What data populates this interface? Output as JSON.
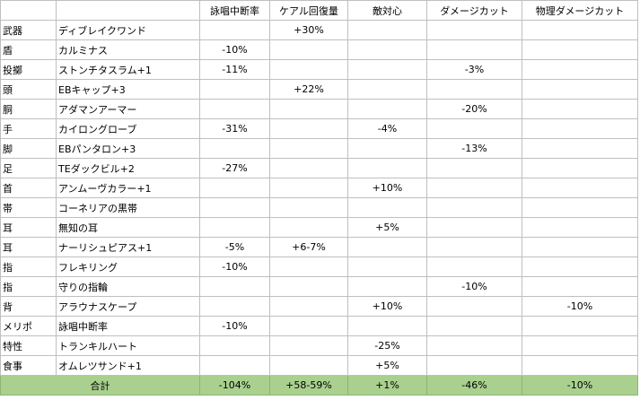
{
  "columns": [
    "",
    "",
    "詠唱中断率",
    "ケアル回復量",
    "敵対心",
    "ダメージカット",
    "物理ダメージカット"
  ],
  "rows": [
    {
      "slot": "武器",
      "item": "ディブレイクワンド",
      "spell_interrupt": "",
      "cure_potency": "+30%",
      "enmity": "",
      "dt": "",
      "pdt": ""
    },
    {
      "slot": "盾",
      "item": "カルミナス",
      "spell_interrupt": "-10%",
      "cure_potency": "",
      "enmity": "",
      "dt": "",
      "pdt": ""
    },
    {
      "slot": "投擲",
      "item": "ストンチタスラム+1",
      "spell_interrupt": "-11%",
      "cure_potency": "",
      "enmity": "",
      "dt": "-3%",
      "pdt": ""
    },
    {
      "slot": "頭",
      "item": "EBキャップ+3",
      "spell_interrupt": "",
      "cure_potency": "+22%",
      "enmity": "",
      "dt": "",
      "pdt": ""
    },
    {
      "slot": "胴",
      "item": "アダマンアーマー",
      "spell_interrupt": "",
      "cure_potency": "",
      "enmity": "",
      "dt": "-20%",
      "pdt": ""
    },
    {
      "slot": "手",
      "item": "カイロングローブ",
      "spell_interrupt": "-31%",
      "cure_potency": "",
      "enmity": "-4%",
      "dt": "",
      "pdt": ""
    },
    {
      "slot": "脚",
      "item": "EBパンタロン+3",
      "spell_interrupt": "",
      "cure_potency": "",
      "enmity": "",
      "dt": "-13%",
      "pdt": ""
    },
    {
      "slot": "足",
      "item": "TEダックビル+2",
      "spell_interrupt": "-27%",
      "cure_potency": "",
      "enmity": "",
      "dt": "",
      "pdt": ""
    },
    {
      "slot": "首",
      "item": "アンムーヴカラー+1",
      "spell_interrupt": "",
      "cure_potency": "",
      "enmity": "+10%",
      "dt": "",
      "pdt": ""
    },
    {
      "slot": "帯",
      "item": "コーネリアの黒帯",
      "spell_interrupt": "",
      "cure_potency": "",
      "enmity": "",
      "dt": "",
      "pdt": ""
    },
    {
      "slot": "耳",
      "item": "無知の耳",
      "spell_interrupt": "",
      "cure_potency": "",
      "enmity": "+5%",
      "dt": "",
      "pdt": ""
    },
    {
      "slot": "耳",
      "item": "ナーリシュピアス+1",
      "spell_interrupt": "-5%",
      "cure_potency": "+6-7%",
      "enmity": "",
      "dt": "",
      "pdt": ""
    },
    {
      "slot": "指",
      "item": "フレキリング",
      "spell_interrupt": "-10%",
      "cure_potency": "",
      "enmity": "",
      "dt": "",
      "pdt": ""
    },
    {
      "slot": "指",
      "item": "守りの指輪",
      "spell_interrupt": "",
      "cure_potency": "",
      "enmity": "",
      "dt": "-10%",
      "pdt": ""
    },
    {
      "slot": "背",
      "item": "アラウナスケープ",
      "spell_interrupt": "",
      "cure_potency": "",
      "enmity": "+10%",
      "dt": "",
      "pdt": "-10%"
    },
    {
      "slot": "メリポ",
      "item": "詠唱中断率",
      "spell_interrupt": "-10%",
      "cure_potency": "",
      "enmity": "",
      "dt": "",
      "pdt": ""
    },
    {
      "slot": "特性",
      "item": "トランキルハート",
      "spell_interrupt": "",
      "cure_potency": "",
      "enmity": "-25%",
      "dt": "",
      "pdt": ""
    },
    {
      "slot": "食事",
      "item": "オムレツサンド+1",
      "spell_interrupt": "",
      "cure_potency": "",
      "enmity": "+5%",
      "dt": "",
      "pdt": ""
    }
  ],
  "total": {
    "label": "合計",
    "spell_interrupt": "-104%",
    "cure_potency": "+58-59%",
    "enmity": "+1%",
    "dt": "-46%",
    "pdt": "-10%"
  },
  "colors": {
    "total_fill": "#a9d08e",
    "gridline": "#bfbfbf"
  }
}
